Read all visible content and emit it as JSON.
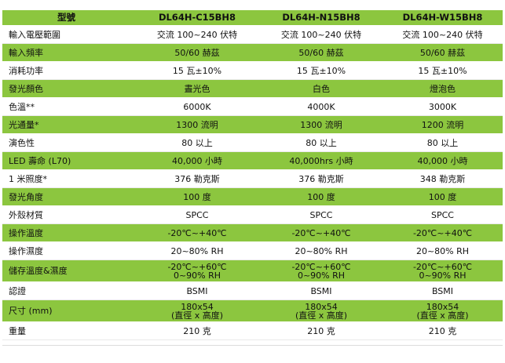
{
  "table": {
    "header": [
      "型號",
      "DL64H-C15BH8",
      "DL64H-N15BH8",
      "DL64H-W15BH8"
    ],
    "rows": [
      {
        "label": "輸入電壓範圍",
        "cells": [
          [
            "交流 100~240 伏特"
          ],
          [
            "交流 100~240 伏特"
          ],
          [
            "交流 100~240 伏特"
          ]
        ]
      },
      {
        "label": "輸入頻率",
        "cells": [
          [
            "50/60 赫茲"
          ],
          [
            "50/60 赫茲"
          ],
          [
            "50/60 赫茲"
          ]
        ]
      },
      {
        "label": "消耗功率",
        "cells": [
          [
            "15 瓦±10%"
          ],
          [
            "15 瓦±10%"
          ],
          [
            "15 瓦±10%"
          ]
        ]
      },
      {
        "label": "發光顏色",
        "cells": [
          [
            "晝光色"
          ],
          [
            "白色"
          ],
          [
            "燈泡色"
          ]
        ]
      },
      {
        "label": "色溫**",
        "cells": [
          [
            "6000K"
          ],
          [
            "4000K"
          ],
          [
            "3000K"
          ]
        ]
      },
      {
        "label": "光通量*",
        "cells": [
          [
            "1300 流明"
          ],
          [
            "1300 流明"
          ],
          [
            "1200 流明"
          ]
        ]
      },
      {
        "label": "演色性",
        "cells": [
          [
            "80 以上"
          ],
          [
            "80 以上"
          ],
          [
            "80 以上"
          ]
        ]
      },
      {
        "label": "LED 壽命 (L70)",
        "cells": [
          [
            "40,000 小時"
          ],
          [
            "40,000hrs 小時"
          ],
          [
            "40,000 小時"
          ]
        ]
      },
      {
        "label": "1 米照度*",
        "cells": [
          [
            "376 勒克斯"
          ],
          [
            "376 勒克斯"
          ],
          [
            "348 勒克斯"
          ]
        ]
      },
      {
        "label": "發光角度",
        "cells": [
          [
            "100 度"
          ],
          [
            "100 度"
          ],
          [
            "100 度"
          ]
        ]
      },
      {
        "label": "外殼材質",
        "cells": [
          [
            "SPCC"
          ],
          [
            "SPCC"
          ],
          [
            "SPCC"
          ]
        ]
      },
      {
        "label": "操作溫度",
        "cells": [
          [
            "-20℃~+40℃"
          ],
          [
            "-20℃~+40℃"
          ],
          [
            "-20℃~+40℃"
          ]
        ]
      },
      {
        "label": "操作濕度",
        "cells": [
          [
            "20~80% RH"
          ],
          [
            "20~80% RH"
          ],
          [
            "20~80% RH"
          ]
        ]
      },
      {
        "label": "儲存溫度&濕度",
        "cells": [
          [
            "-20℃~+60℃",
            "0~90% RH"
          ],
          [
            "-20℃~+60℃",
            "0~90% RH"
          ],
          [
            "-20℃~+60℃",
            "0~90% RH"
          ]
        ]
      },
      {
        "label": "認證",
        "cells": [
          [
            "BSMI"
          ],
          [
            "BSMI"
          ],
          [
            "BSMI"
          ]
        ]
      },
      {
        "label": "尺寸 (mm)",
        "cells": [
          [
            "180x54",
            "(直徑 x 高度)"
          ],
          [
            "180x54",
            "(直徑 x 高度)"
          ],
          [
            "180x54",
            "(直徑 x 高度)"
          ]
        ]
      },
      {
        "label": "重量",
        "cells": [
          [
            "210 克"
          ],
          [
            "210 克"
          ],
          [
            "210 克"
          ]
        ]
      }
    ]
  },
  "colors": {
    "green_row": "#8cc63f",
    "white_row": "#ffffff"
  }
}
